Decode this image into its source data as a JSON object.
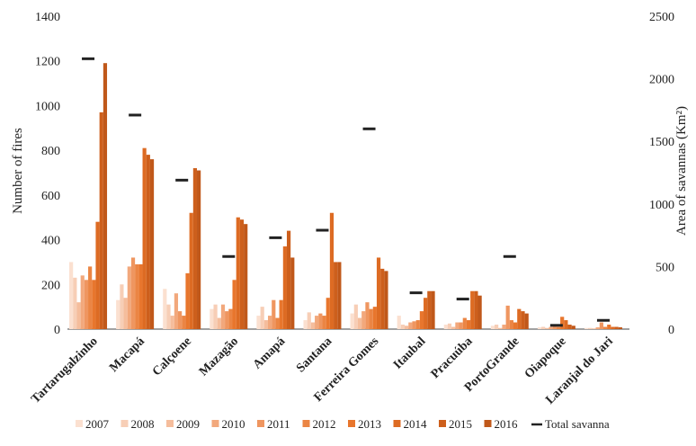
{
  "chart_data": {
    "type": "bar",
    "title": "",
    "ylabel_left": "Number of fires",
    "ylabel_right": "Area of savannas (Km²)",
    "ylim_left": [
      0,
      1400
    ],
    "ylim_right": [
      0,
      2500
    ],
    "yticks_left": [
      "0",
      "200",
      "400",
      "600",
      "800",
      "1000",
      "1200",
      "1400"
    ],
    "yticks_right": [
      "0",
      "500",
      "1000",
      "1500",
      "2000",
      "2500"
    ],
    "legend_position": "bottom",
    "categories": [
      "Tartarugalzinho",
      "Macapá",
      "Calçoene",
      "Mazagão",
      "Amapá",
      "Santana",
      "Ferreira Gomes",
      "Itaubal",
      "Pracuúba",
      "PortoGrande",
      "Oiapoque",
      "Laranjal do Jari"
    ],
    "series": [
      {
        "name": "2007",
        "color": "#fbe0d0",
        "values": [
          300,
          130,
          180,
          90,
          60,
          40,
          70,
          60,
          20,
          15,
          8,
          5
        ]
      },
      {
        "name": "2008",
        "color": "#f7ceb6",
        "values": [
          230,
          200,
          110,
          110,
          100,
          75,
          110,
          20,
          25,
          20,
          10,
          5
        ]
      },
      {
        "name": "2009",
        "color": "#f5bd9c",
        "values": [
          120,
          140,
          60,
          50,
          40,
          30,
          50,
          15,
          10,
          5,
          5,
          3
        ]
      },
      {
        "name": "2010",
        "color": "#f2a87c",
        "values": [
          240,
          280,
          160,
          110,
          60,
          60,
          80,
          30,
          30,
          20,
          10,
          8
        ]
      },
      {
        "name": "2011",
        "color": "#ef9660",
        "values": [
          220,
          320,
          80,
          80,
          130,
          70,
          120,
          35,
          30,
          105,
          20,
          30
        ]
      },
      {
        "name": "2012",
        "color": "#eb8544",
        "values": [
          280,
          290,
          60,
          90,
          50,
          60,
          90,
          40,
          50,
          40,
          10,
          10
        ]
      },
      {
        "name": "2013",
        "color": "#e8762d",
        "values": [
          220,
          290,
          250,
          220,
          130,
          140,
          100,
          80,
          40,
          30,
          55,
          20
        ]
      },
      {
        "name": "2014",
        "color": "#dd6b23",
        "values": [
          480,
          810,
          520,
          500,
          370,
          520,
          320,
          140,
          170,
          90,
          40,
          10
        ]
      },
      {
        "name": "2015",
        "color": "#cd5f1c",
        "values": [
          970,
          780,
          720,
          490,
          440,
          300,
          270,
          170,
          170,
          80,
          20,
          10
        ]
      },
      {
        "name": "2016",
        "color": "#c0581a",
        "values": [
          1190,
          760,
          710,
          470,
          320,
          300,
          260,
          170,
          150,
          70,
          15,
          8
        ]
      }
    ],
    "savanna_series": {
      "name": "Total savanna",
      "color": "#222222",
      "axis": "right",
      "values": [
        2160,
        1710,
        1190,
        580,
        730,
        790,
        1600,
        290,
        240,
        580,
        30,
        70
      ]
    }
  }
}
